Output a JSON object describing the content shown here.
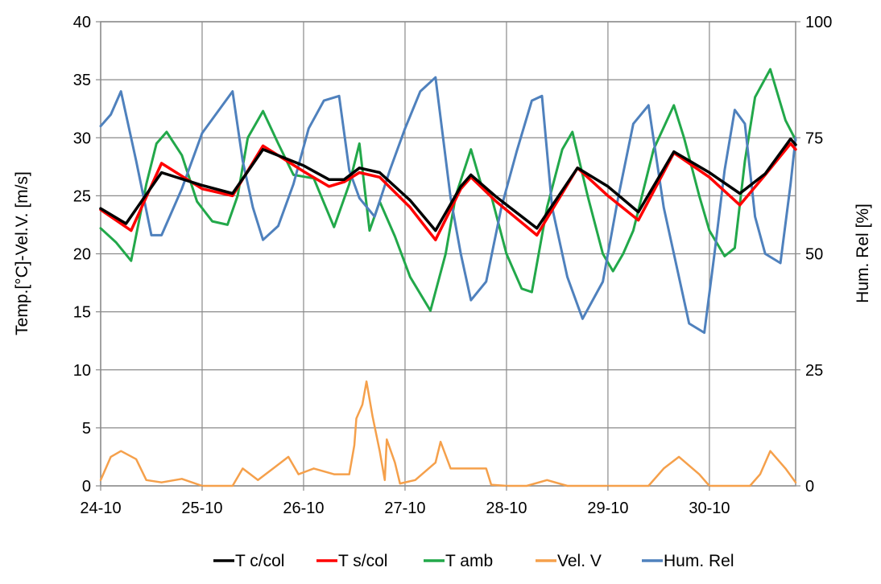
{
  "chart_data": {
    "type": "line",
    "x_tick_labels": [
      "24-10",
      "25-10",
      "26-10",
      "27-10",
      "28-10",
      "29-10",
      "30-10"
    ],
    "x_range_days": [
      0,
      6.85
    ],
    "left_axis": {
      "label": "Temp.[°C]-Vel.V. [m/s]",
      "range": [
        0,
        40
      ],
      "ticks": [
        0,
        5,
        10,
        15,
        20,
        25,
        30,
        35,
        40
      ]
    },
    "right_axis": {
      "label": "Hum. Rel [%]",
      "range": [
        0,
        100
      ],
      "ticks": [
        0,
        25,
        50,
        75,
        100
      ]
    },
    "grid": true,
    "legend_position": "bottom",
    "series": [
      {
        "name": "T  c/col",
        "color": "#000000",
        "axis": "left",
        "width": 3.5,
        "points": [
          [
            0,
            23.9
          ],
          [
            0.25,
            22.6
          ],
          [
            0.6,
            27.0
          ],
          [
            1.0,
            25.9
          ],
          [
            1.3,
            25.2
          ],
          [
            1.6,
            29.0
          ],
          [
            2.0,
            27.6
          ],
          [
            2.25,
            26.4
          ],
          [
            2.4,
            26.4
          ],
          [
            2.55,
            27.4
          ],
          [
            2.75,
            27.0
          ],
          [
            3.05,
            24.6
          ],
          [
            3.3,
            22.0
          ],
          [
            3.55,
            25.8
          ],
          [
            3.65,
            26.8
          ],
          [
            3.9,
            24.9
          ],
          [
            4.3,
            22.2
          ],
          [
            4.7,
            27.4
          ],
          [
            5.0,
            25.8
          ],
          [
            5.3,
            23.6
          ],
          [
            5.65,
            28.8
          ],
          [
            6.0,
            27.0
          ],
          [
            6.3,
            25.2
          ],
          [
            6.55,
            26.9
          ],
          [
            6.8,
            29.9
          ],
          [
            6.85,
            29.4
          ]
        ]
      },
      {
        "name": "T  s/col",
        "color": "#ff0000",
        "axis": "left",
        "width": 3.5,
        "points": [
          [
            0,
            23.8
          ],
          [
            0.3,
            22.0
          ],
          [
            0.6,
            27.8
          ],
          [
            1.0,
            25.6
          ],
          [
            1.3,
            25.0
          ],
          [
            1.6,
            29.3
          ],
          [
            2.0,
            27.1
          ],
          [
            2.25,
            25.8
          ],
          [
            2.4,
            26.2
          ],
          [
            2.55,
            27.0
          ],
          [
            2.75,
            26.6
          ],
          [
            3.05,
            24.0
          ],
          [
            3.3,
            21.2
          ],
          [
            3.55,
            25.6
          ],
          [
            3.65,
            26.6
          ],
          [
            3.9,
            24.5
          ],
          [
            4.3,
            21.6
          ],
          [
            4.7,
            27.4
          ],
          [
            5.0,
            25.0
          ],
          [
            5.3,
            22.9
          ],
          [
            5.65,
            28.7
          ],
          [
            6.0,
            26.6
          ],
          [
            6.3,
            24.2
          ],
          [
            6.55,
            26.8
          ],
          [
            6.8,
            29.5
          ],
          [
            6.85,
            29.0
          ]
        ]
      },
      {
        "name": "T  amb",
        "color": "#22a84a",
        "axis": "left",
        "width": 3,
        "points": [
          [
            0,
            22.2
          ],
          [
            0.15,
            21.0
          ],
          [
            0.3,
            19.4
          ],
          [
            0.45,
            26.0
          ],
          [
            0.55,
            29.5
          ],
          [
            0.65,
            30.5
          ],
          [
            0.8,
            28.5
          ],
          [
            0.95,
            24.5
          ],
          [
            1.1,
            22.8
          ],
          [
            1.25,
            22.5
          ],
          [
            1.35,
            25.0
          ],
          [
            1.45,
            30.0
          ],
          [
            1.6,
            32.3
          ],
          [
            1.75,
            29.5
          ],
          [
            1.9,
            26.8
          ],
          [
            2.1,
            26.5
          ],
          [
            2.3,
            22.3
          ],
          [
            2.45,
            26.0
          ],
          [
            2.55,
            29.5
          ],
          [
            2.65,
            22.0
          ],
          [
            2.75,
            24.5
          ],
          [
            2.9,
            21.5
          ],
          [
            3.05,
            18.0
          ],
          [
            3.25,
            15.1
          ],
          [
            3.4,
            20.0
          ],
          [
            3.5,
            25.0
          ],
          [
            3.65,
            29.0
          ],
          [
            3.75,
            26.0
          ],
          [
            3.85,
            25.0
          ],
          [
            4.0,
            20.0
          ],
          [
            4.15,
            17.0
          ],
          [
            4.25,
            16.7
          ],
          [
            4.4,
            24.0
          ],
          [
            4.55,
            29.0
          ],
          [
            4.65,
            30.5
          ],
          [
            4.8,
            25.0
          ],
          [
            4.95,
            20.0
          ],
          [
            5.05,
            18.5
          ],
          [
            5.15,
            20.0
          ],
          [
            5.25,
            22.0
          ],
          [
            5.45,
            29.0
          ],
          [
            5.65,
            32.8
          ],
          [
            5.75,
            30.0
          ],
          [
            5.9,
            25.0
          ],
          [
            6.0,
            22.0
          ],
          [
            6.15,
            19.8
          ],
          [
            6.25,
            20.5
          ],
          [
            6.35,
            28.0
          ],
          [
            6.45,
            33.5
          ],
          [
            6.6,
            35.9
          ],
          [
            6.75,
            31.5
          ],
          [
            6.85,
            29.8
          ]
        ]
      },
      {
        "name": "Vel. V",
        "color": "#f5a04b",
        "axis": "left",
        "width": 2.5,
        "points": [
          [
            0,
            0.5
          ],
          [
            0.1,
            2.5
          ],
          [
            0.2,
            3.0
          ],
          [
            0.35,
            2.3
          ],
          [
            0.45,
            0.5
          ],
          [
            0.6,
            0.3
          ],
          [
            0.8,
            0.6
          ],
          [
            1.0,
            0
          ],
          [
            1.3,
            0
          ],
          [
            1.4,
            1.5
          ],
          [
            1.55,
            0.5
          ],
          [
            1.7,
            1.5
          ],
          [
            1.85,
            2.5
          ],
          [
            1.95,
            1.0
          ],
          [
            2.1,
            1.5
          ],
          [
            2.3,
            1.0
          ],
          [
            2.45,
            1.0
          ],
          [
            2.5,
            3.5
          ],
          [
            2.52,
            5.8
          ],
          [
            2.58,
            7.0
          ],
          [
            2.62,
            9.0
          ],
          [
            2.68,
            6.0
          ],
          [
            2.75,
            3.0
          ],
          [
            2.8,
            0.5
          ],
          [
            2.82,
            4.0
          ],
          [
            2.9,
            2.0
          ],
          [
            2.95,
            0.2
          ],
          [
            3.1,
            0.5
          ],
          [
            3.3,
            2.0
          ],
          [
            3.35,
            3.8
          ],
          [
            3.45,
            1.5
          ],
          [
            3.6,
            1.5
          ],
          [
            3.8,
            1.5
          ],
          [
            3.85,
            0.1
          ],
          [
            4.0,
            0
          ],
          [
            4.2,
            0
          ],
          [
            4.4,
            0.5
          ],
          [
            4.6,
            0
          ],
          [
            5.4,
            0
          ],
          [
            5.55,
            1.5
          ],
          [
            5.7,
            2.5
          ],
          [
            5.9,
            1.0
          ],
          [
            6.0,
            0
          ],
          [
            6.4,
            0
          ],
          [
            6.5,
            1.0
          ],
          [
            6.6,
            3.0
          ],
          [
            6.75,
            1.5
          ],
          [
            6.85,
            0.3
          ]
        ]
      },
      {
        "name": "Hum. Rel",
        "color": "#4f81bd",
        "axis": "right",
        "width": 3,
        "points": [
          [
            0,
            77.5
          ],
          [
            0.1,
            80.0
          ],
          [
            0.2,
            85.0
          ],
          [
            0.35,
            70.0
          ],
          [
            0.5,
            54.0
          ],
          [
            0.6,
            54.0
          ],
          [
            0.8,
            64.0
          ],
          [
            1.0,
            76.0
          ],
          [
            1.2,
            82.0
          ],
          [
            1.3,
            85.0
          ],
          [
            1.4,
            70.0
          ],
          [
            1.5,
            60.0
          ],
          [
            1.6,
            53.0
          ],
          [
            1.75,
            56.0
          ],
          [
            1.9,
            65.0
          ],
          [
            2.05,
            77.0
          ],
          [
            2.2,
            83.0
          ],
          [
            2.35,
            84.0
          ],
          [
            2.45,
            68.0
          ],
          [
            2.55,
            62.0
          ],
          [
            2.7,
            58.0
          ],
          [
            2.85,
            68.0
          ],
          [
            3.0,
            77.0
          ],
          [
            3.15,
            85.0
          ],
          [
            3.3,
            88.0
          ],
          [
            3.45,
            62.0
          ],
          [
            3.55,
            50.0
          ],
          [
            3.65,
            40.0
          ],
          [
            3.8,
            44.0
          ],
          [
            3.95,
            60.0
          ],
          [
            4.1,
            72.0
          ],
          [
            4.25,
            83.0
          ],
          [
            4.35,
            84.0
          ],
          [
            4.45,
            60.0
          ],
          [
            4.6,
            45.0
          ],
          [
            4.75,
            36.0
          ],
          [
            4.95,
            44.0
          ],
          [
            5.1,
            62.0
          ],
          [
            5.25,
            78.0
          ],
          [
            5.4,
            82.0
          ],
          [
            5.55,
            60.0
          ],
          [
            5.7,
            45.0
          ],
          [
            5.8,
            35.0
          ],
          [
            5.95,
            33.0
          ],
          [
            6.05,
            50.0
          ],
          [
            6.15,
            68.0
          ],
          [
            6.25,
            81.0
          ],
          [
            6.35,
            78.0
          ],
          [
            6.45,
            58.0
          ],
          [
            6.55,
            50.0
          ],
          [
            6.7,
            48.0
          ],
          [
            6.8,
            65.0
          ],
          [
            6.85,
            75.0
          ]
        ]
      }
    ]
  }
}
